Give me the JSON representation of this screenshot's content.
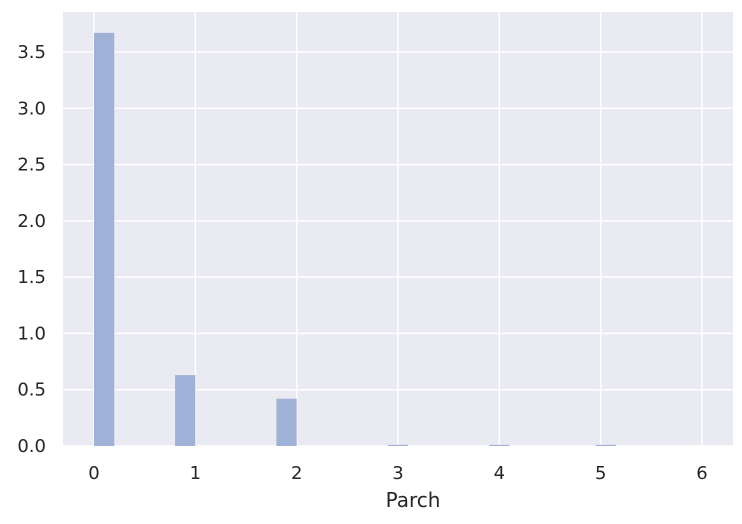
{
  "chart_data": {
    "type": "bar",
    "xlabel": "Parch",
    "ylabel": "",
    "xlim": [
      -0.3,
      6.1
    ],
    "ylim": [
      0,
      3.8
    ],
    "x_ticks": [
      "0",
      "1",
      "2",
      "3",
      "4",
      "5",
      "6"
    ],
    "y_ticks": [
      "0.0",
      "0.5",
      "1.0",
      "1.5",
      "2.0",
      "2.5",
      "3.0",
      "3.5"
    ],
    "bins": [
      {
        "start": 0.0,
        "end": 0.2,
        "value": 3.67
      },
      {
        "start": 0.8,
        "end": 1.0,
        "value": 0.63
      },
      {
        "start": 1.8,
        "end": 2.0,
        "value": 0.42
      },
      {
        "start": 2.9,
        "end": 3.1,
        "value": 0.01
      },
      {
        "start": 3.9,
        "end": 4.1,
        "value": 0.01
      },
      {
        "start": 4.95,
        "end": 5.15,
        "value": 0.01
      }
    ],
    "grid": true,
    "colors": {
      "bar": "#9fb1d6",
      "background": "#eaeaf2",
      "grid": "#ffffff"
    }
  }
}
